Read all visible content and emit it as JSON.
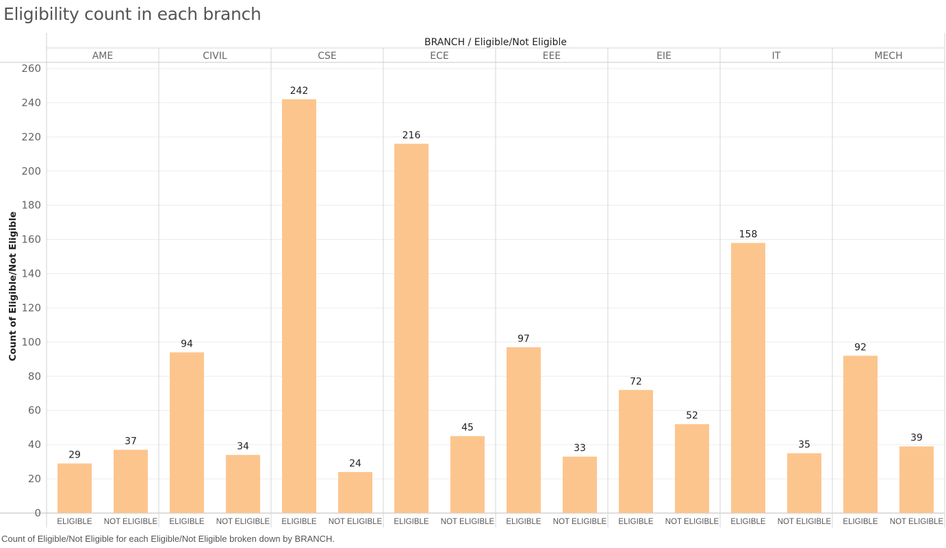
{
  "title": "Eligibility count in each branch",
  "caption": "Count of Eligible/Not Eligible for each Eligible/Not Eligible broken down by BRANCH.",
  "chart_data": {
    "type": "bar",
    "header": "BRANCH  /  Eligible/Not Eligible",
    "ylabel": "Count of Eligible/Not Eligible",
    "ylim": [
      0,
      260
    ],
    "yticks": [
      0,
      20,
      40,
      60,
      80,
      100,
      120,
      140,
      160,
      180,
      200,
      220,
      240,
      260
    ],
    "grid": true,
    "bar_color": "#fdc58e",
    "branches": [
      "AME",
      "CIVIL",
      "CSE",
      "ECE",
      "EEE",
      "EIE",
      "IT",
      "MECH"
    ],
    "categories": [
      "ELIGIBLE",
      "NOT ELIGIBLE"
    ],
    "values": [
      [
        29,
        37
      ],
      [
        94,
        34
      ],
      [
        242,
        24
      ],
      [
        216,
        45
      ],
      [
        97,
        33
      ],
      [
        72,
        52
      ],
      [
        158,
        35
      ],
      [
        92,
        39
      ]
    ]
  }
}
